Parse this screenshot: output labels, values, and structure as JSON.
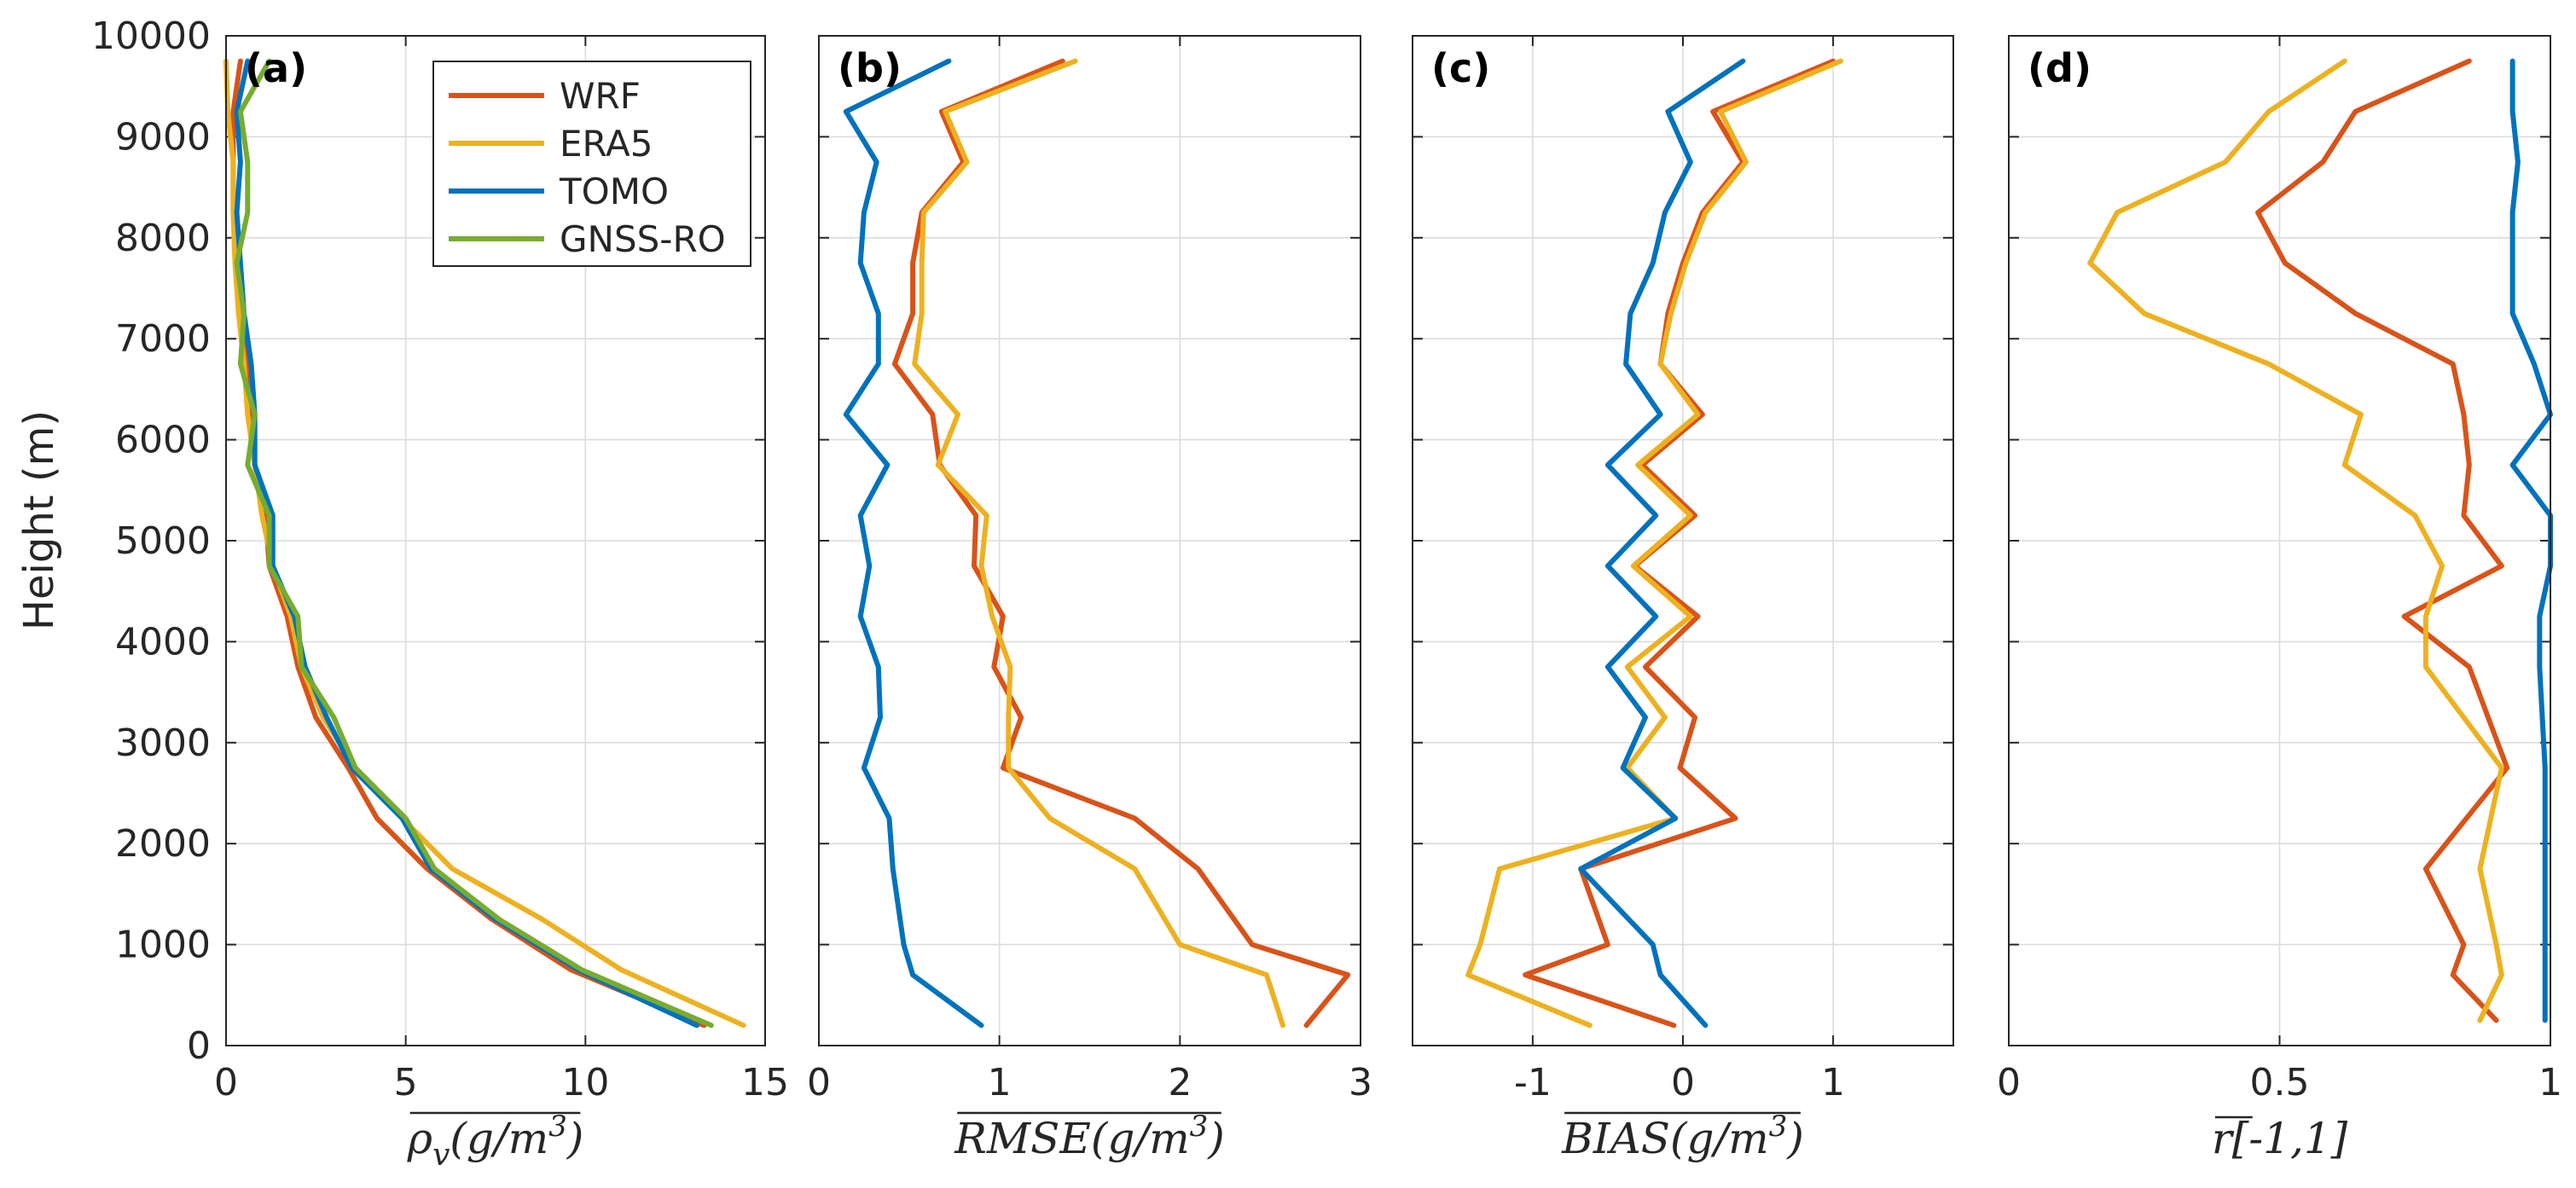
{
  "figure": {
    "ylabel": "Height (m)",
    "yticks": [
      0,
      1000,
      2000,
      3000,
      4000,
      5000,
      6000,
      7000,
      8000,
      9000,
      10000
    ],
    "ylim": [
      0,
      10000
    ]
  },
  "series_colors": {
    "WRF": "#D95319",
    "ERA5": "#EDB120",
    "TOMO": "#0072BD",
    "GNSS-RO": "#77AC30"
  },
  "legend": [
    "WRF",
    "ERA5",
    "TOMO",
    "GNSS-RO"
  ],
  "chart_data": [
    {
      "type": "line",
      "panel": "(a)",
      "xlabel": "ρv(g/m3)",
      "xlim": [
        0,
        15
      ],
      "xticks": [
        0,
        5,
        10,
        15
      ],
      "y": [
        200,
        750,
        1250,
        1750,
        2250,
        2750,
        3250,
        3750,
        4250,
        4750,
        5250,
        5750,
        6250,
        6750,
        7250,
        7750,
        8250,
        8750,
        9250,
        9750
      ],
      "series": [
        {
          "name": "WRF",
          "values": [
            13.3,
            9.6,
            7.4,
            5.6,
            4.2,
            3.4,
            2.5,
            2.0,
            1.7,
            1.2,
            1.1,
            0.8,
            0.7,
            0.6,
            0.4,
            0.3,
            0.2,
            0.2,
            0.2,
            0.4
          ]
        },
        {
          "name": "ERA5",
          "values": [
            14.4,
            11.0,
            8.8,
            6.3,
            4.9,
            3.6,
            2.7,
            2.1,
            1.8,
            1.3,
            1.0,
            0.8,
            0.6,
            0.5,
            0.35,
            0.25,
            0.2,
            0.2,
            0.05,
            0.0
          ]
        },
        {
          "name": "TOMO",
          "values": [
            13.1,
            9.8,
            7.5,
            5.7,
            4.9,
            3.5,
            2.8,
            2.2,
            1.9,
            1.3,
            1.3,
            0.8,
            0.8,
            0.7,
            0.5,
            0.4,
            0.3,
            0.4,
            0.3,
            0.6
          ]
        },
        {
          "name": "GNSS-RO",
          "values": [
            13.5,
            9.9,
            7.6,
            5.8,
            5.0,
            3.6,
            3.0,
            2.1,
            2.0,
            1.2,
            1.2,
            0.6,
            0.8,
            0.4,
            0.5,
            0.3,
            0.6,
            0.6,
            0.4,
            1.2
          ]
        }
      ]
    },
    {
      "type": "line",
      "panel": "(b)",
      "xlabel": "RMSE(g/m3)",
      "xlim": [
        0,
        3
      ],
      "xticks": [
        0,
        1,
        2,
        3
      ],
      "y": [
        200,
        700,
        1000,
        1750,
        2250,
        2750,
        3250,
        3750,
        4250,
        4750,
        5250,
        5750,
        6250,
        6750,
        7250,
        7750,
        8250,
        8750,
        9250,
        9750
      ],
      "series": [
        {
          "name": "WRF",
          "values": [
            2.7,
            2.93,
            2.4,
            2.1,
            1.75,
            1.02,
            1.12,
            0.97,
            1.02,
            0.86,
            0.87,
            0.67,
            0.63,
            0.42,
            0.52,
            0.52,
            0.57,
            0.8,
            0.68,
            1.35
          ]
        },
        {
          "name": "ERA5",
          "values": [
            2.57,
            2.48,
            2.0,
            1.75,
            1.28,
            1.05,
            1.05,
            1.06,
            0.96,
            0.9,
            0.93,
            0.66,
            0.77,
            0.53,
            0.57,
            0.57,
            0.58,
            0.82,
            0.7,
            1.42
          ]
        },
        {
          "name": "TOMO",
          "values": [
            0.9,
            0.52,
            0.47,
            0.41,
            0.39,
            0.25,
            0.34,
            0.33,
            0.23,
            0.28,
            0.23,
            0.38,
            0.15,
            0.33,
            0.33,
            0.23,
            0.25,
            0.32,
            0.15,
            0.72
          ]
        }
      ]
    },
    {
      "type": "line",
      "panel": "(c)",
      "xlabel": "BIAS(g/m3)",
      "xlim": [
        -1.8,
        1.8
      ],
      "xticks": [
        -1,
        0,
        1
      ],
      "y": [
        200,
        700,
        1000,
        1750,
        2250,
        2750,
        3250,
        3750,
        4250,
        4750,
        5250,
        5750,
        6250,
        6750,
        7250,
        7750,
        8250,
        8750,
        9250,
        9750
      ],
      "series": [
        {
          "name": "WRF",
          "values": [
            -0.06,
            -1.05,
            -0.5,
            -0.68,
            0.35,
            -0.02,
            0.08,
            -0.25,
            0.1,
            -0.32,
            0.08,
            -0.27,
            0.13,
            -0.15,
            -0.1,
            0.0,
            0.13,
            0.4,
            0.2,
            1.0
          ]
        },
        {
          "name": "ERA5",
          "values": [
            -0.62,
            -1.43,
            -1.35,
            -1.22,
            -0.05,
            -0.37,
            -0.12,
            -0.37,
            0.05,
            -0.33,
            0.05,
            -0.3,
            0.1,
            -0.15,
            -0.08,
            0.02,
            0.15,
            0.42,
            0.25,
            1.05
          ]
        },
        {
          "name": "TOMO",
          "values": [
            0.15,
            -0.15,
            -0.2,
            -0.68,
            -0.05,
            -0.4,
            -0.25,
            -0.5,
            -0.18,
            -0.5,
            -0.18,
            -0.5,
            -0.15,
            -0.38,
            -0.35,
            -0.2,
            -0.12,
            0.05,
            -0.1,
            0.4
          ]
        }
      ]
    },
    {
      "type": "line",
      "panel": "(d)",
      "xlabel": "r[-1,1]",
      "xlim": [
        0,
        1
      ],
      "xticks": [
        0,
        0.5,
        1
      ],
      "y": [
        250,
        700,
        1000,
        1750,
        2750,
        3750,
        4250,
        4750,
        5250,
        5750,
        6250,
        6750,
        7250,
        7750,
        8250,
        8750,
        9250,
        9750
      ],
      "series": [
        {
          "name": "WRF",
          "values": [
            0.9,
            0.82,
            0.84,
            0.77,
            0.92,
            0.85,
            0.73,
            0.91,
            0.84,
            0.85,
            0.84,
            0.82,
            0.64,
            0.51,
            0.46,
            0.58,
            0.64,
            0.85
          ]
        },
        {
          "name": "ERA5",
          "values": [
            0.87,
            0.91,
            0.9,
            0.87,
            0.91,
            0.77,
            0.77,
            0.8,
            0.75,
            0.62,
            0.65,
            0.48,
            0.25,
            0.15,
            0.2,
            0.4,
            0.48,
            0.62
          ]
        },
        {
          "name": "TOMO",
          "values": [
            0.99,
            0.99,
            0.99,
            0.99,
            0.99,
            0.98,
            0.98,
            1.0,
            1.0,
            0.93,
            1.0,
            0.97,
            0.93,
            0.93,
            0.93,
            0.94,
            0.93,
            0.93
          ]
        }
      ]
    }
  ]
}
